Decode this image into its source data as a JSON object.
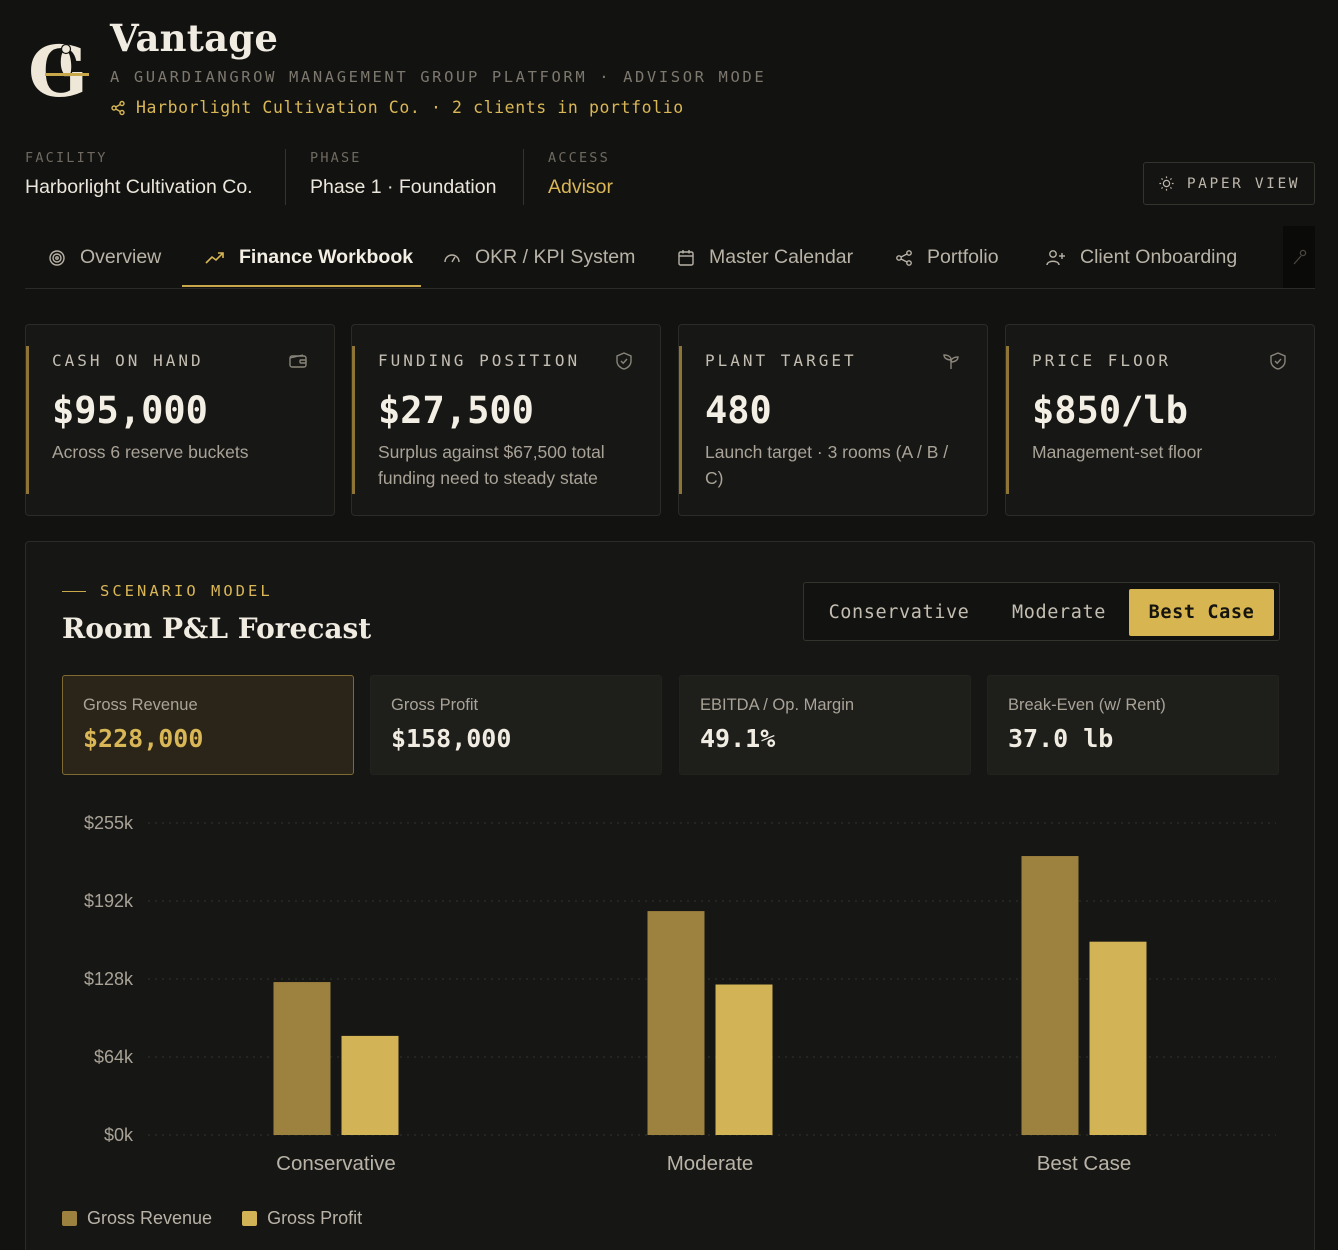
{
  "app": {
    "title": "Vantage",
    "subtitle": "A GUARDIANGROW MANAGEMENT GROUP PLATFORM · ADVISOR MODE",
    "portfolio_line": "Harborlight Cultivation Co. · 2 clients in portfolio",
    "logo_letter": "G"
  },
  "meta": {
    "facility": {
      "label": "FACILITY",
      "value": "Harborlight Cultivation Co."
    },
    "phase": {
      "label": "PHASE",
      "value": "Phase 1 · Foundation"
    },
    "access": {
      "label": "ACCESS",
      "value": "Advisor"
    }
  },
  "paper_view_label": "PAPER VIEW",
  "tabs": [
    {
      "label": "Overview",
      "icon": "target-icon"
    },
    {
      "label": "Finance Workbook",
      "icon": "trending-up-icon",
      "active": true
    },
    {
      "label": "OKR / KPI System",
      "icon": "gauge-icon"
    },
    {
      "label": "Master Calendar",
      "icon": "calendar-icon"
    },
    {
      "label": "Portfolio",
      "icon": "share-icon"
    },
    {
      "label": "Client Onboarding",
      "icon": "user-plus-icon"
    }
  ],
  "cards": [
    {
      "label": "CASH ON HAND",
      "value": "$95,000",
      "desc": "Across 6 reserve buckets",
      "icon": "wallet-icon"
    },
    {
      "label": "FUNDING POSITION",
      "value": "$27,500",
      "desc": "Surplus against $67,500 total funding need to steady state",
      "icon": "shield-check-icon"
    },
    {
      "label": "PLANT TARGET",
      "value": "480",
      "desc": "Launch target · 3 rooms (A / B / C)",
      "icon": "sprout-icon"
    },
    {
      "label": "PRICE FLOOR",
      "value": "$850/lb",
      "desc": "Management-set floor",
      "icon": "shield-check-icon"
    }
  ],
  "scenario": {
    "eyebrow": "SCENARIO MODEL",
    "title": "Room P&L Forecast",
    "options": [
      "Conservative",
      "Moderate",
      "Best Case"
    ],
    "selected": "Best Case",
    "metrics": [
      {
        "label": "Gross Revenue",
        "value": "$228,000"
      },
      {
        "label": "Gross Profit",
        "value": "$158,000"
      },
      {
        "label": "EBITDA / Op. Margin",
        "value": "49.1%"
      },
      {
        "label": "Break-Even (w/ Rent)",
        "value": "37.0 lb"
      }
    ]
  },
  "colors": {
    "accent": "#c9a84c",
    "revenue_bar": "#9c813f",
    "profit_bar": "#d2b356",
    "background": "#121210"
  },
  "chart_data": {
    "type": "bar",
    "categories": [
      "Conservative",
      "Moderate",
      "Best Case"
    ],
    "series": [
      {
        "name": "Gross Revenue",
        "values": [
          125000,
          183000,
          228000
        ]
      },
      {
        "name": "Gross Profit",
        "values": [
          81000,
          123000,
          158000
        ]
      }
    ],
    "yticks": [
      "$0k",
      "$64k",
      "$128k",
      "$192k",
      "$255k"
    ],
    "ylim": [
      0,
      255000
    ],
    "grid": true,
    "legend": "bottom-left"
  }
}
